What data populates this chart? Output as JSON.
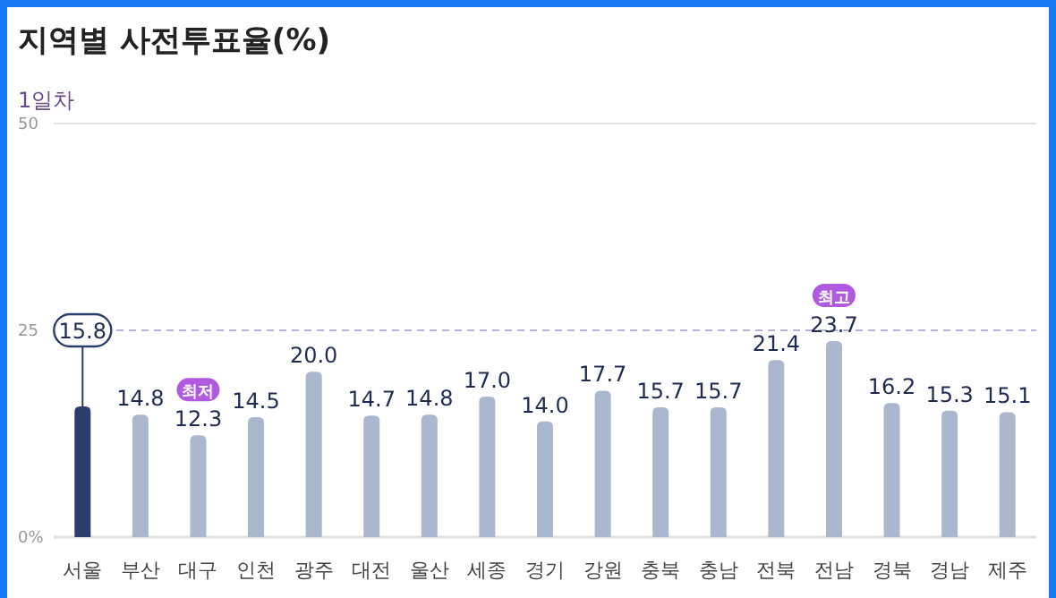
{
  "chart_data": {
    "type": "bar",
    "title": "지역별 사전투표율(%)",
    "subtitle": "1일차",
    "categories": [
      "서울",
      "부산",
      "대구",
      "인천",
      "광주",
      "대전",
      "울산",
      "세종",
      "경기",
      "강원",
      "충북",
      "충남",
      "전북",
      "전남",
      "경북",
      "경남",
      "제주"
    ],
    "values": [
      15.8,
      14.8,
      12.3,
      14.5,
      20.0,
      14.7,
      14.8,
      17.0,
      14.0,
      17.7,
      15.7,
      15.7,
      21.4,
      23.7,
      16.2,
      15.3,
      15.1
    ],
    "colors": [
      "#2d3d6b",
      "#aab7cc",
      "#aab7cc",
      "#aab7cc",
      "#aab7cc",
      "#aab7cc",
      "#aab7cc",
      "#aab7cc",
      "#aab7cc",
      "#aab7cc",
      "#aab7cc",
      "#aab7cc",
      "#aab7cc",
      "#aab7cc",
      "#aab7cc",
      "#aab7cc",
      "#aab7cc"
    ],
    "ylim": [
      0,
      50
    ],
    "yticks": [
      {
        "value": 0,
        "label": "0%"
      },
      25,
      50
    ],
    "ref_lines": [
      {
        "axis": "y",
        "value": 25,
        "color": "#b9b2d6",
        "line_style": "dashed"
      },
      {
        "axis": "y",
        "value": 50,
        "color": "#e2e2e2",
        "line_style": "solid"
      }
    ],
    "value_labels": [
      "15.8",
      "14.8",
      "12.3",
      "14.5",
      "20.0",
      "14.7",
      "14.8",
      "17.0",
      "14.0",
      "17.7",
      "15.7",
      "15.7",
      "21.4",
      "23.7",
      "16.2",
      "15.3",
      "15.1"
    ],
    "annotations": [
      {
        "text": "최저",
        "x": "대구",
        "y": 12.3
      },
      {
        "text": "최고",
        "x": "전남",
        "y": 23.7
      }
    ]
  }
}
